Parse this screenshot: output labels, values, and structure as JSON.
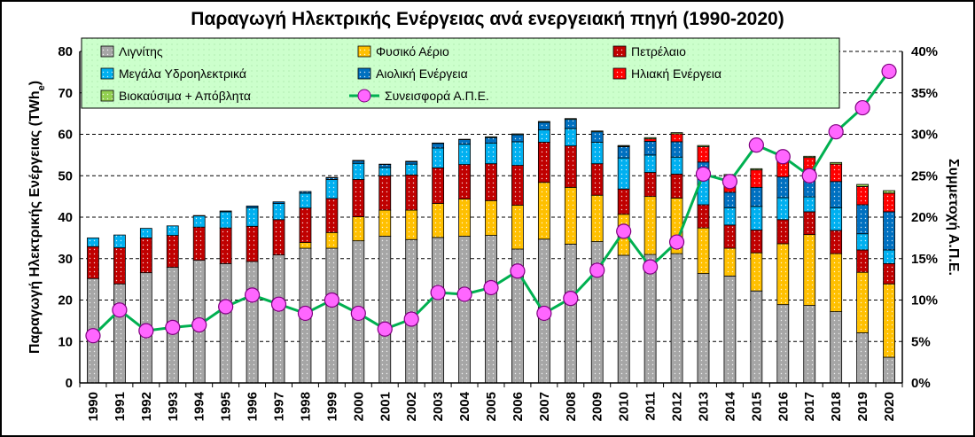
{
  "chart_data": {
    "type": "bar",
    "title": "Παραγωγή Ηλεκτρικής Ενέργειας ανά ενεργειακή πηγή (1990-2020)",
    "ylabel_prefix": "Παραγωγή Ηλεκτρικής Ενέργειας (TWh",
    "ylabel_sub": "e",
    "ylabel_suffix": ")",
    "y2label": "Συμμετοχή Α.Π.Ε.",
    "ylim": [
      0,
      80
    ],
    "yticks": [
      0,
      10,
      20,
      30,
      40,
      50,
      60,
      70,
      80
    ],
    "y2lim": [
      0,
      40
    ],
    "y2ticks": [
      "0%",
      "5%",
      "10%",
      "15%",
      "20%",
      "25%",
      "30%",
      "35%",
      "40%"
    ],
    "grid": true,
    "legend_position": "top",
    "categories": [
      "1990",
      "1991",
      "1992",
      "1993",
      "1994",
      "1995",
      "1996",
      "1997",
      "1998",
      "1999",
      "2000",
      "2001",
      "2002",
      "2003",
      "2004",
      "2005",
      "2006",
      "2007",
      "2008",
      "2009",
      "2010",
      "2011",
      "2012",
      "2013",
      "2014",
      "2015",
      "2016",
      "2017",
      "2018",
      "2019",
      "2020"
    ],
    "series": [
      {
        "name": "Λιγνίτης",
        "key": "lignite",
        "color": "#a6a6a6",
        "values": [
          25.2,
          23.9,
          26.6,
          27.9,
          29.6,
          28.8,
          29.3,
          30.9,
          32.5,
          32.5,
          34.3,
          35.4,
          34.6,
          35.1,
          35.4,
          35.6,
          32.3,
          34.7,
          33.5,
          34.1,
          30.8,
          31.0,
          31.2,
          26.4,
          25.8,
          22.2,
          18.9,
          18.7,
          17.2,
          12.1,
          6.2
        ]
      },
      {
        "name": "Φυσικό Αέριο",
        "key": "gas",
        "color": "#ffc000",
        "values": [
          0,
          0,
          0,
          0,
          0,
          0,
          0,
          0,
          1.4,
          3.8,
          5.8,
          6.3,
          7.1,
          8.2,
          9.0,
          8.4,
          10.6,
          13.7,
          13.7,
          11.2,
          9.9,
          14.0,
          13.4,
          11.0,
          6.7,
          9.2,
          14.7,
          17.1,
          14.0,
          14.6,
          17.7
        ]
      },
      {
        "name": "Πετρέλαιο",
        "key": "oil",
        "color": "#c00000",
        "values": [
          7.7,
          8.7,
          8.4,
          7.7,
          8.0,
          8.6,
          8.5,
          8.5,
          8.3,
          8.2,
          9.0,
          8.3,
          8.5,
          8.6,
          8.3,
          8.9,
          9.6,
          9.7,
          10.0,
          7.6,
          6.1,
          5.8,
          5.8,
          5.6,
          5.6,
          5.5,
          5.8,
          5.5,
          5.6,
          5.4,
          4.9
        ]
      },
      {
        "name": "Μεγάλα Υδροηλεκτρικά",
        "key": "hydro",
        "color": "#00b0f0",
        "values": [
          2.1,
          3.1,
          2.3,
          2.3,
          2.7,
          3.9,
          4.5,
          3.9,
          3.6,
          4.6,
          3.9,
          2.0,
          2.6,
          4.8,
          4.9,
          5.0,
          5.7,
          3.0,
          4.2,
          5.2,
          7.5,
          4.2,
          4.1,
          6.3,
          4.2,
          5.7,
          5.3,
          3.6,
          5.5,
          3.9,
          3.3
        ]
      },
      {
        "name": "Αιολική Ενέργεια",
        "key": "wind",
        "color": "#0070c0",
        "values": [
          0,
          0,
          0,
          0,
          0.1,
          0.2,
          0.4,
          0.4,
          0.4,
          0.4,
          0.6,
          0.7,
          0.6,
          1.1,
          1.1,
          1.3,
          1.7,
          1.8,
          2.2,
          2.5,
          2.7,
          3.3,
          3.7,
          4.0,
          3.7,
          4.6,
          5.0,
          5.5,
          6.3,
          7.0,
          9.2
        ]
      },
      {
        "name": "Ηλιακή Ενέργεια",
        "key": "solar",
        "color": "#ff0000",
        "values": [
          0,
          0,
          0,
          0,
          0,
          0,
          0,
          0,
          0,
          0,
          0,
          0,
          0,
          0,
          0,
          0,
          0,
          0,
          0,
          0,
          0.1,
          0.6,
          1.9,
          3.7,
          4.0,
          4.2,
          3.9,
          4.0,
          4.2,
          4.4,
          4.5
        ]
      },
      {
        "name": "Βιοκαύσιμα + Απόβλητα",
        "key": "bio",
        "color": "#92d050",
        "values": [
          0,
          0,
          0,
          0,
          0,
          0,
          0,
          0,
          0,
          0.1,
          0.1,
          0.1,
          0.1,
          0.1,
          0.1,
          0.2,
          0.2,
          0.2,
          0.2,
          0.2,
          0.2,
          0.3,
          0.3,
          0.3,
          0.3,
          0.3,
          0.3,
          0.3,
          0.4,
          0.5,
          0.6
        ]
      }
    ],
    "line": {
      "name": "Συνεισφορά Α.Π.Ε.",
      "color": "#00b050",
      "marker_color": "#ff66ff",
      "axis": "right",
      "values": [
        5.7,
        8.8,
        6.3,
        6.7,
        7.0,
        9.2,
        10.6,
        9.5,
        8.4,
        10.0,
        8.4,
        6.5,
        7.7,
        10.9,
        10.7,
        11.5,
        13.5,
        8.4,
        10.2,
        13.6,
        18.3,
        14.0,
        17.0,
        25.2,
        24.3,
        28.7,
        27.3,
        25.0,
        30.3,
        33.2,
        37.6
      ]
    }
  },
  "colors": {
    "legend_bg": "#ccffcc",
    "grid": "#000000",
    "frame": "#000000"
  }
}
